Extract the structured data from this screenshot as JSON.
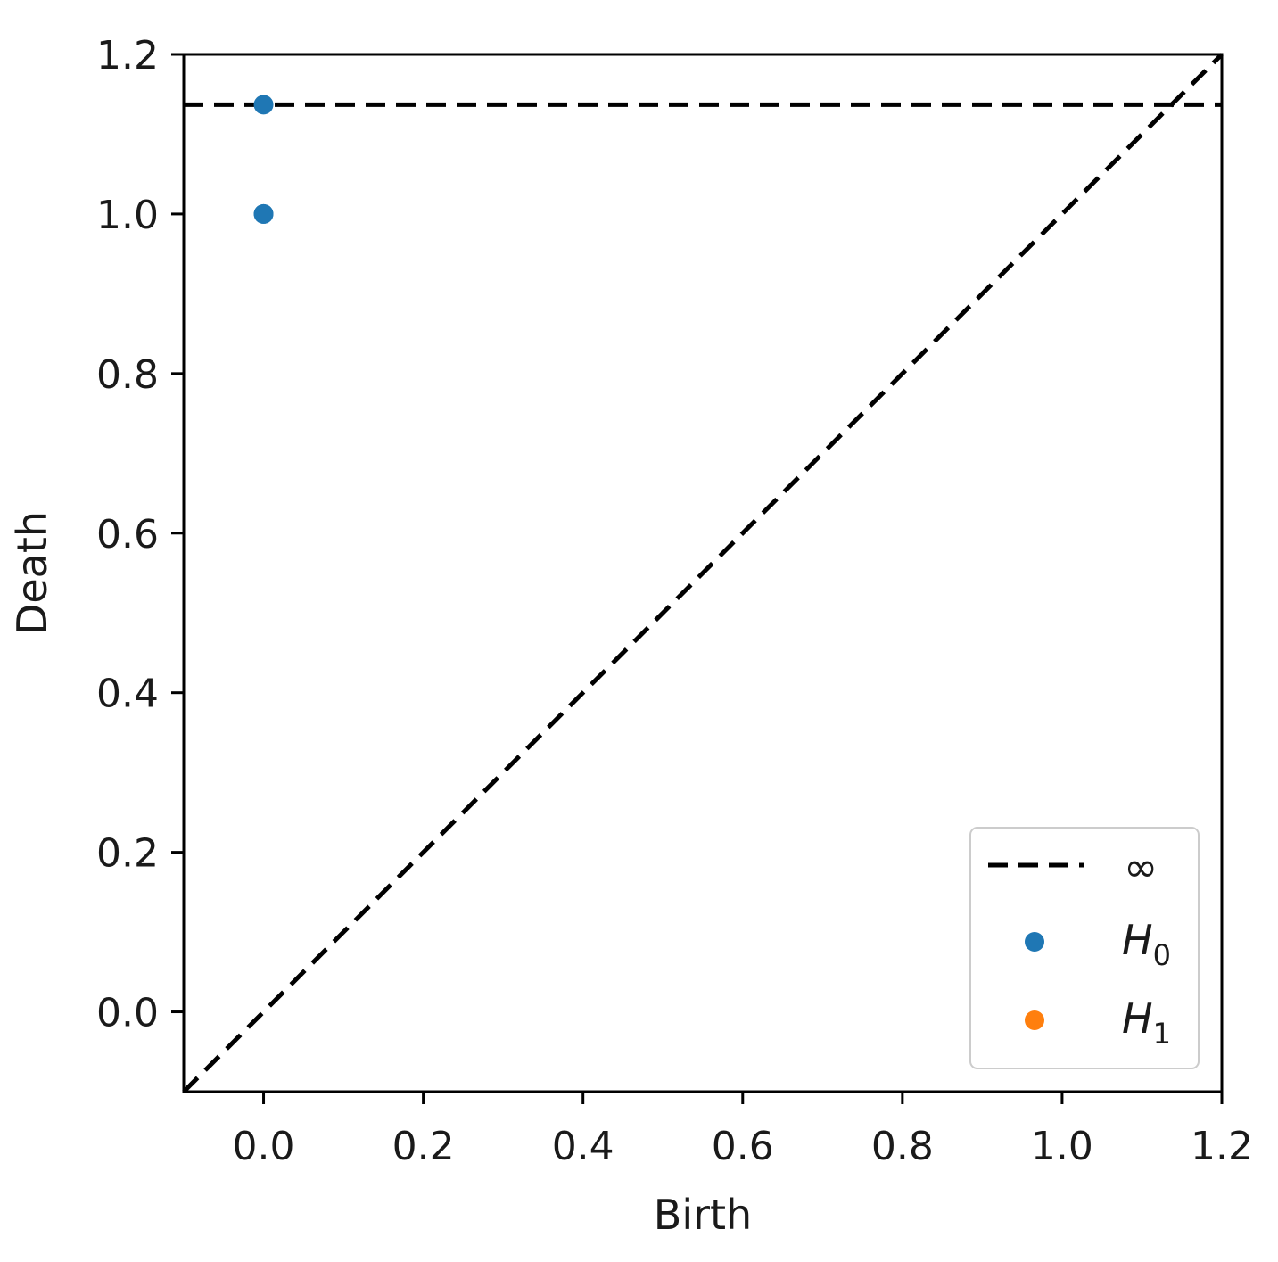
{
  "chart_data": {
    "type": "scatter",
    "xlabel": "Birth",
    "ylabel": "Death",
    "xlim": [
      -0.1,
      1.2
    ],
    "ylim": [
      -0.1,
      1.2
    ],
    "x_ticks": [
      "0.0",
      "0.2",
      "0.4",
      "0.6",
      "0.8",
      "1.0",
      "1.2"
    ],
    "y_ticks": [
      "0.0",
      "0.2",
      "0.4",
      "0.6",
      "0.8",
      "1.0",
      "1.2"
    ],
    "grid": false,
    "legend_position": "lower-right",
    "infinity_line": {
      "y": 1.137,
      "label": "∞"
    },
    "diagonal": {
      "from": [
        -0.1,
        -0.1
      ],
      "to": [
        1.2,
        1.2
      ]
    },
    "series": [
      {
        "name_main": "H",
        "name_sub": "0",
        "color": "#1f77b4",
        "points": [
          {
            "x": 0.0,
            "y": 1.137
          },
          {
            "x": 0.0,
            "y": 1.0
          },
          {
            "x": 0.0,
            "y": 1.0
          }
        ]
      },
      {
        "name_main": "H",
        "name_sub": "1",
        "color": "#ff7f0e",
        "points": []
      }
    ]
  }
}
